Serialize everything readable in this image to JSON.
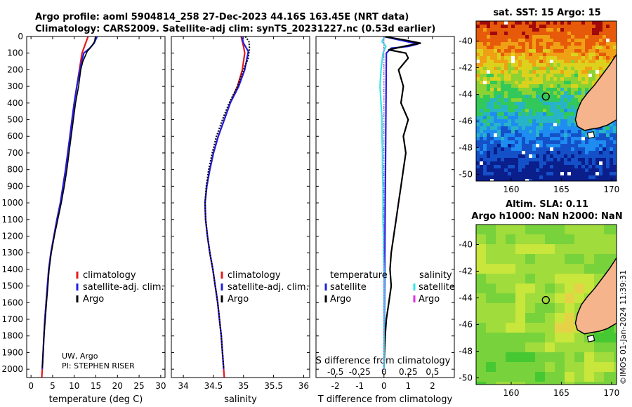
{
  "header": {
    "line1": "Argo profile: aoml 5904814_258 27-Dec-2023 44.16S 163.45E (NRT data)",
    "line2": "Climatology: CARS2009. Satellite-adj clim: synTS_20231227.nc (0.53d earlier)"
  },
  "credits": {
    "line1": "UW, Argo",
    "line2": "PI: STEPHEN RISER"
  },
  "watermark": "©IMOS 01-Jan-2024 11:39:31",
  "colors": {
    "climatology": "#e41a1c",
    "satellite": "#1f1fe0",
    "argo": "#000000",
    "sat_s": "#33e6e6",
    "argo_s": "#e030e0"
  },
  "chart_data": [
    {
      "id": "temperature",
      "type": "line",
      "xlabel": "temperature (deg C)",
      "xlim": [
        -1,
        31
      ],
      "xticks": [
        0,
        5,
        10,
        15,
        20,
        25,
        30
      ],
      "ylim": [
        0,
        2050
      ],
      "yticks": [
        0,
        100,
        200,
        300,
        400,
        500,
        600,
        700,
        800,
        900,
        1000,
        1100,
        1200,
        1300,
        1400,
        1500,
        1600,
        1700,
        1800,
        1900,
        2000
      ],
      "legend": [
        "climatology",
        "satellite-adj. clim.",
        "Argo"
      ],
      "series": [
        {
          "name": "climatology",
          "color": "#e41a1c",
          "width": 2.2,
          "points": [
            [
              13.2,
              0
            ],
            [
              12.5,
              50
            ],
            [
              11.8,
              100
            ],
            [
              11.2,
              200
            ],
            [
              10.6,
              300
            ],
            [
              10.0,
              400
            ],
            [
              9.5,
              500
            ],
            [
              9.0,
              600
            ],
            [
              8.5,
              700
            ],
            [
              8.0,
              800
            ],
            [
              7.4,
              900
            ],
            [
              6.8,
              1000
            ],
            [
              6.0,
              1100
            ],
            [
              5.3,
              1200
            ],
            [
              4.6,
              1300
            ],
            [
              4.1,
              1400
            ],
            [
              3.8,
              1500
            ],
            [
              3.5,
              1600
            ],
            [
              3.2,
              1700
            ],
            [
              3.0,
              1800
            ],
            [
              2.8,
              1900
            ],
            [
              2.6,
              2000
            ],
            [
              2.5,
              2050
            ]
          ]
        },
        {
          "name": "satellite-adj. clim.",
          "color": "#1f1fe0",
          "width": 2.2,
          "points": [
            [
              15.3,
              0
            ],
            [
              14.6,
              40
            ],
            [
              13.6,
              70
            ],
            [
              12.2,
              100
            ],
            [
              11.3,
              200
            ],
            [
              10.6,
              300
            ],
            [
              10.0,
              400
            ],
            [
              9.5,
              500
            ],
            [
              9.0,
              600
            ],
            [
              8.5,
              700
            ],
            [
              8.0,
              800
            ],
            [
              7.4,
              900
            ],
            [
              6.8,
              1000
            ],
            [
              6.0,
              1100
            ],
            [
              5.3,
              1200
            ],
            [
              4.6,
              1300
            ],
            [
              4.1,
              1400
            ],
            [
              3.8,
              1500
            ],
            [
              3.5,
              1600
            ],
            [
              3.2,
              1700
            ],
            [
              3.0,
              1800
            ],
            [
              2.8,
              1900
            ],
            [
              2.6,
              2000
            ]
          ]
        },
        {
          "name": "Argo",
          "color": "#000000",
          "width": 1.6,
          "points": [
            [
              14.9,
              0
            ],
            [
              14.7,
              30
            ],
            [
              14.0,
              60
            ],
            [
              13.0,
              90
            ],
            [
              12.0,
              150
            ],
            [
              11.5,
              200
            ],
            [
              11.0,
              300
            ],
            [
              10.3,
              400
            ],
            [
              9.8,
              500
            ],
            [
              9.3,
              600
            ],
            [
              8.8,
              700
            ],
            [
              8.3,
              800
            ],
            [
              7.7,
              900
            ],
            [
              7.0,
              1000
            ],
            [
              6.2,
              1100
            ],
            [
              5.4,
              1200
            ],
            [
              4.7,
              1300
            ],
            [
              4.2,
              1400
            ],
            [
              3.9,
              1500
            ],
            [
              3.6,
              1600
            ],
            [
              3.3,
              1700
            ],
            [
              3.0,
              1800
            ],
            [
              2.8,
              1900
            ],
            [
              2.6,
              1990
            ]
          ]
        }
      ]
    },
    {
      "id": "salinity",
      "type": "line",
      "xlabel": "salinity",
      "xlim": [
        33.8,
        36.1
      ],
      "xticks": [
        34,
        34.5,
        35,
        35.5,
        36
      ],
      "xticklabels": [
        "34",
        "34.5",
        "35",
        "35.5",
        "36"
      ],
      "ylim": [
        0,
        2050
      ],
      "legend": [
        "climatology",
        "satellite-adj. clim.",
        "Argo"
      ],
      "series": [
        {
          "name": "climatology",
          "color": "#e41a1c",
          "width": 2.2,
          "points": [
            [
              34.96,
              0
            ],
            [
              35.0,
              60
            ],
            [
              35.02,
              100
            ],
            [
              34.98,
              200
            ],
            [
              34.9,
              300
            ],
            [
              34.78,
              400
            ],
            [
              34.68,
              500
            ],
            [
              34.58,
              600
            ],
            [
              34.5,
              700
            ],
            [
              34.44,
              800
            ],
            [
              34.39,
              900
            ],
            [
              34.36,
              1000
            ],
            [
              34.37,
              1100
            ],
            [
              34.4,
              1200
            ],
            [
              34.44,
              1300
            ],
            [
              34.49,
              1400
            ],
            [
              34.53,
              1500
            ],
            [
              34.57,
              1600
            ],
            [
              34.6,
              1700
            ],
            [
              34.63,
              1800
            ],
            [
              34.65,
              1900
            ],
            [
              34.67,
              2000
            ],
            [
              34.68,
              2050
            ]
          ]
        },
        {
          "name": "satellite-adj. clim.",
          "color": "#1f1fe0",
          "width": 2.2,
          "points": [
            [
              34.97,
              0
            ],
            [
              35.0,
              40
            ],
            [
              35.08,
              90
            ],
            [
              35.02,
              200
            ],
            [
              34.92,
              300
            ],
            [
              34.78,
              400
            ],
            [
              34.68,
              500
            ],
            [
              34.58,
              600
            ],
            [
              34.5,
              700
            ],
            [
              34.44,
              800
            ],
            [
              34.39,
              900
            ],
            [
              34.36,
              1000
            ],
            [
              34.37,
              1100
            ],
            [
              34.4,
              1200
            ],
            [
              34.44,
              1300
            ],
            [
              34.49,
              1400
            ],
            [
              34.53,
              1500
            ],
            [
              34.57,
              1600
            ],
            [
              34.6,
              1700
            ],
            [
              34.63,
              1800
            ],
            [
              34.65,
              1900
            ],
            [
              34.67,
              2000
            ]
          ]
        },
        {
          "name": "Argo",
          "color": "#000000",
          "width": 2.0,
          "dotted": true,
          "points": [
            [
              35.03,
              0
            ],
            [
              35.09,
              30
            ],
            [
              35.1,
              70
            ],
            [
              35.08,
              130
            ],
            [
              35.0,
              200
            ],
            [
              34.9,
              300
            ],
            [
              34.76,
              400
            ],
            [
              34.65,
              500
            ],
            [
              34.55,
              600
            ],
            [
              34.48,
              700
            ],
            [
              34.42,
              800
            ],
            [
              34.38,
              900
            ],
            [
              34.36,
              1000
            ],
            [
              34.37,
              1100
            ],
            [
              34.4,
              1200
            ],
            [
              34.44,
              1300
            ],
            [
              34.49,
              1400
            ],
            [
              34.53,
              1500
            ],
            [
              34.57,
              1600
            ],
            [
              34.6,
              1700
            ],
            [
              34.63,
              1800
            ],
            [
              34.65,
              1900
            ],
            [
              34.67,
              1990
            ]
          ]
        }
      ]
    },
    {
      "id": "differences",
      "type": "line",
      "xlabel": "T difference from climatology",
      "xlabel2": "S difference from climatology",
      "xlim": [
        -2.8,
        2.9
      ],
      "xticks": [
        -2,
        -1,
        0,
        1,
        2
      ],
      "s_xticks": [
        -0.5,
        -0.25,
        0,
        0.25,
        0.5
      ],
      "s_xticklabels": [
        "-0.5",
        "-0.25",
        "0",
        "0.25",
        "0.5"
      ],
      "s_scale": 4,
      "ylim": [
        0,
        2050
      ],
      "legend_titles": [
        "temperature",
        "salinity"
      ],
      "legend": [
        "satellite",
        "Argo",
        "satellite",
        "Argo"
      ],
      "series": [
        {
          "name": "T satellite",
          "color": "#1f1fe0",
          "width": 2.2,
          "points": [
            [
              0,
              0
            ],
            [
              0.6,
              20
            ],
            [
              1.4,
              45
            ],
            [
              1.0,
              60
            ],
            [
              0.3,
              70
            ],
            [
              0.1,
              100
            ],
            [
              0,
              2000
            ]
          ]
        },
        {
          "name": "T Argo",
          "color": "#000000",
          "width": 2.2,
          "points": [
            [
              0,
              0
            ],
            [
              0.8,
              20
            ],
            [
              1.5,
              40
            ],
            [
              0.8,
              60
            ],
            [
              0.2,
              80
            ],
            [
              0.9,
              100
            ],
            [
              1.0,
              130
            ],
            [
              0.6,
              200
            ],
            [
              0.8,
              300
            ],
            [
              0.7,
              400
            ],
            [
              1.0,
              500
            ],
            [
              0.8,
              600
            ],
            [
              0.9,
              700
            ],
            [
              0.8,
              800
            ],
            [
              0.7,
              900
            ],
            [
              0.6,
              1000
            ],
            [
              0.5,
              1100
            ],
            [
              0.4,
              1200
            ],
            [
              0.3,
              1300
            ],
            [
              0.25,
              1400
            ],
            [
              0.3,
              1500
            ],
            [
              0.2,
              1600
            ],
            [
              0.1,
              1700
            ],
            [
              0.05,
              1800
            ],
            [
              0.02,
              1900
            ],
            [
              0,
              2000
            ]
          ]
        },
        {
          "name": "S satellite",
          "color": "#33e6e6",
          "width": 2.2,
          "points": [
            [
              0.005,
              0
            ],
            [
              -0.02,
              30
            ],
            [
              0.02,
              60
            ],
            [
              -0.01,
              100
            ],
            [
              -0.03,
              200
            ],
            [
              -0.04,
              300
            ],
            [
              -0.03,
              400
            ],
            [
              -0.02,
              500
            ],
            [
              -0.02,
              600
            ],
            [
              -0.015,
              700
            ],
            [
              -0.015,
              800
            ],
            [
              -0.01,
              900
            ],
            [
              -0.01,
              1000
            ],
            [
              -0.01,
              1100
            ],
            [
              -0.005,
              1200
            ],
            [
              -0.005,
              1300
            ],
            [
              0,
              1400
            ],
            [
              0,
              1500
            ],
            [
              0,
              1600
            ],
            [
              0,
              1700
            ],
            [
              0,
              1800
            ],
            [
              0,
              1900
            ],
            [
              0,
              2000
            ]
          ]
        },
        {
          "name": "S Argo",
          "color": "#e030e0",
          "width": 1.0,
          "dotted": true,
          "points": [
            [
              0,
              0
            ],
            [
              0,
              2000
            ]
          ]
        }
      ]
    }
  ],
  "maps": {
    "sst": {
      "title": "sat. SST: 15 Argo: 15",
      "xticks": [
        160,
        165,
        170
      ],
      "yticks": [
        -40,
        -42,
        -44,
        -46,
        -48,
        -50
      ],
      "xlim": [
        156.5,
        170.5
      ],
      "ylim": [
        -50.5,
        -38.5
      ]
    },
    "sla": {
      "title1": "Altim. SLA: 0.11",
      "title2": "Argo h1000: NaN h2000: NaN",
      "xticks": [
        160,
        165,
        170
      ],
      "yticks": [
        -40,
        -42,
        -44,
        -46,
        -48,
        -50
      ],
      "xlim": [
        156.5,
        170.5
      ],
      "ylim": [
        -50.5,
        -38.5
      ]
    },
    "argo_position": {
      "lon": 163.45,
      "lat": -44.16
    }
  }
}
